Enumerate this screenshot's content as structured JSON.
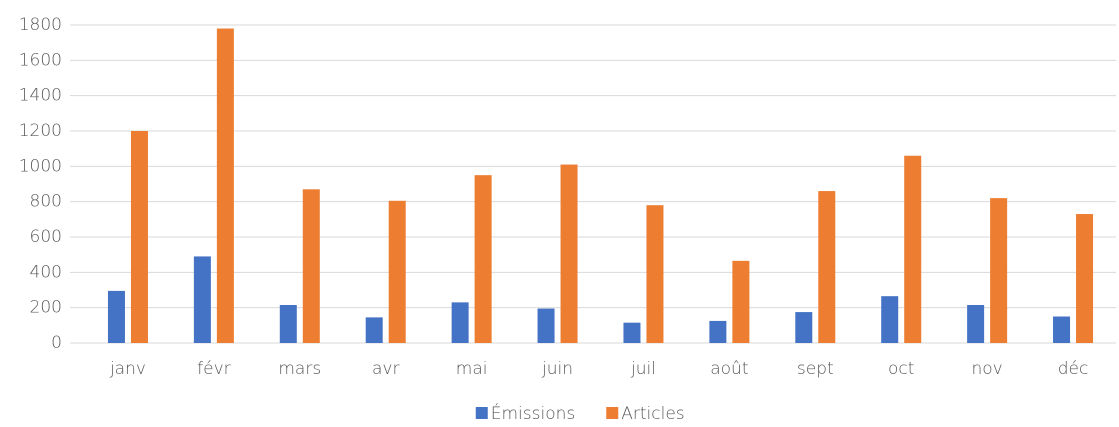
{
  "chart_data": {
    "type": "bar",
    "categories": [
      "janv",
      "févr",
      "mars",
      "avr",
      "mai",
      "juin",
      "juil",
      "août",
      "sept",
      "oct",
      "nov",
      "déc"
    ],
    "series": [
      {
        "name": "Émissions",
        "color": "#4472c4",
        "values": [
          295,
          490,
          215,
          145,
          230,
          195,
          115,
          125,
          175,
          265,
          215,
          150
        ]
      },
      {
        "name": "Articles",
        "color": "#ed7d31",
        "values": [
          1200,
          1780,
          870,
          805,
          950,
          1010,
          780,
          465,
          860,
          1060,
          820,
          730
        ]
      }
    ],
    "ylim": [
      0,
      1800
    ],
    "yticks": [
      0,
      200,
      400,
      600,
      800,
      1000,
      1200,
      1400,
      1600,
      1800
    ],
    "grid": true,
    "legend": "bottom"
  }
}
